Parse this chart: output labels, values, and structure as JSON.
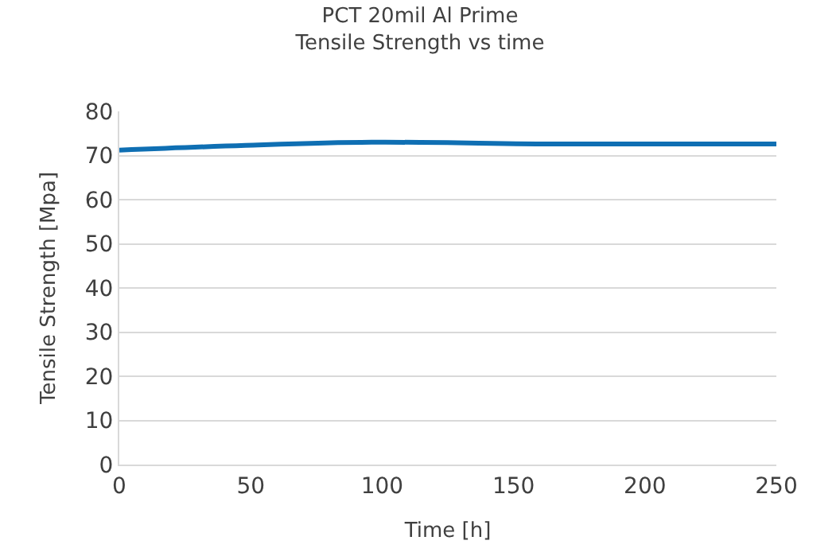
{
  "chart_data": {
    "type": "line",
    "title": "PCT 20mil Al Prime",
    "subtitle": "Tensile Strength vs time",
    "xlabel": "Time [h]",
    "ylabel": "Tensile Strength [Mpa]",
    "x": [
      0,
      48,
      96,
      168,
      250
    ],
    "series": [
      {
        "color": "#0f6fb3",
        "values": [
          71.2,
          72.3,
          73,
          72.6,
          72.6
        ]
      }
    ],
    "xlim": [
      0,
      250
    ],
    "xticks": [
      0,
      50,
      100,
      150,
      200,
      250
    ],
    "ylim": [
      0,
      80
    ],
    "yticks": [
      0,
      10,
      20,
      30,
      40,
      50,
      60,
      70,
      80
    ],
    "grid": "y",
    "legend": false,
    "marker": "none",
    "line_style": "solid"
  }
}
